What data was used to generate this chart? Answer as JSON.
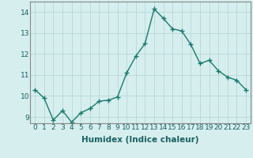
{
  "xlabel": "Humidex (Indice chaleur)",
  "x": [
    0,
    1,
    2,
    3,
    4,
    5,
    6,
    7,
    8,
    9,
    10,
    11,
    12,
    13,
    14,
    15,
    16,
    17,
    18,
    19,
    20,
    21,
    22,
    23
  ],
  "y": [
    10.3,
    9.9,
    8.85,
    9.3,
    8.75,
    9.2,
    9.4,
    9.75,
    9.8,
    9.95,
    11.1,
    11.9,
    12.5,
    14.15,
    13.7,
    13.2,
    13.1,
    12.45,
    11.55,
    11.7,
    11.2,
    10.9,
    10.75,
    10.3
  ],
  "line_color": "#1a7a6e",
  "marker": "+",
  "marker_size": 4,
  "bg_color": "#d6eeee",
  "grid_color": "#b8d8d8",
  "ylim": [
    8.7,
    14.5
  ],
  "yticks": [
    9,
    10,
    11,
    12,
    13,
    14
  ],
  "xticks": [
    0,
    1,
    2,
    3,
    4,
    5,
    6,
    7,
    8,
    9,
    10,
    11,
    12,
    13,
    14,
    15,
    16,
    17,
    18,
    19,
    20,
    21,
    22,
    23
  ],
  "tick_fontsize": 6.5,
  "xlabel_fontsize": 7.5,
  "linewidth": 1.0,
  "spine_color": "#888888"
}
